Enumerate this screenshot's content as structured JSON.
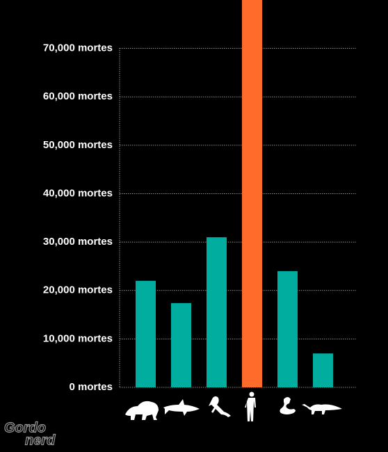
{
  "chart_data": {
    "type": "bar",
    "categories": [
      null,
      null,
      null,
      null,
      null,
      null
    ],
    "values": [
      22000,
      17400,
      31000,
      80000,
      24000,
      7000
    ],
    "colors": [
      "#00ad9f",
      "#00ad9f",
      "#00ad9f",
      "#ff6b2b",
      "#00ad9f",
      "#00ad9f"
    ],
    "ylim": [
      0,
      80000
    ],
    "yticks": [
      {
        "value": 0,
        "label": "0 mortes"
      },
      {
        "value": 10000,
        "label": "10,000 mortes"
      },
      {
        "value": 20000,
        "label": "20,000 mortes"
      },
      {
        "value": 30000,
        "label": "30,000 mortes"
      },
      {
        "value": 40000,
        "label": "40,000 mortes"
      },
      {
        "value": 50000,
        "label": "50,000 mortes"
      },
      {
        "value": 60000,
        "label": "60,000 mortes"
      },
      {
        "value": 70000,
        "label": "70,000 mortes"
      }
    ],
    "grid": true
  },
  "watermark": {
    "line1": "Gordo",
    "line2": "nerd"
  }
}
